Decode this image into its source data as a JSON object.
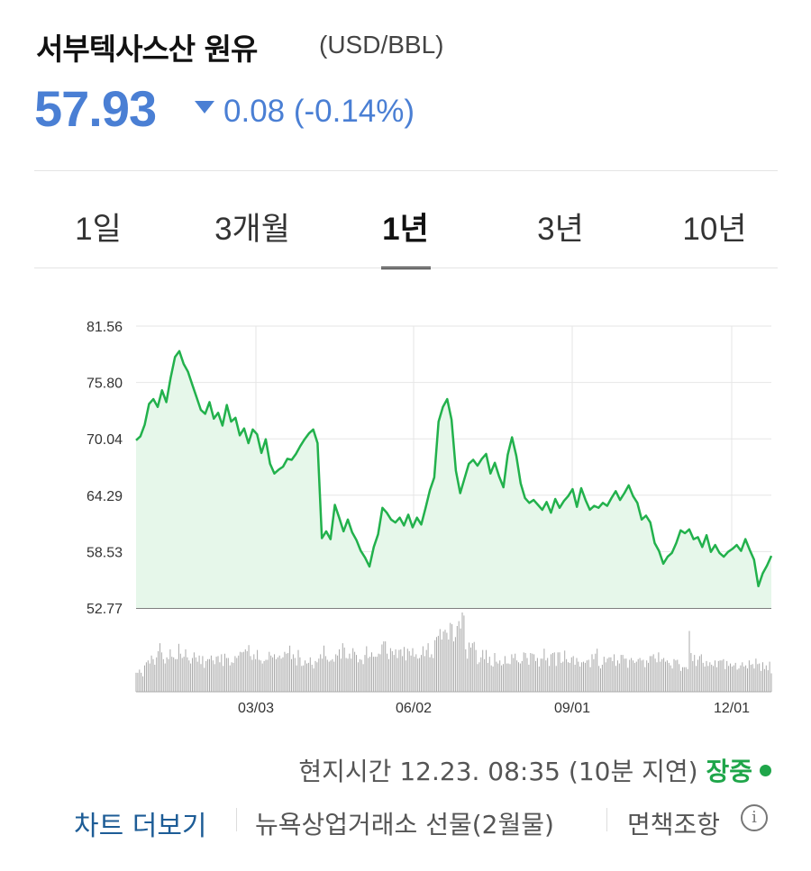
{
  "header": {
    "title": "서부텍사스산 원유",
    "unit": "(USD/BBL)",
    "price": "57.93",
    "change": "0.08 (-0.14%)",
    "change_direction": "down",
    "accent_color": "#4a7fd4"
  },
  "tabs": [
    {
      "label": "1일",
      "active": false
    },
    {
      "label": "3개월",
      "active": false
    },
    {
      "label": "1년",
      "active": true
    },
    {
      "label": "3년",
      "active": false
    },
    {
      "label": "10년",
      "active": false
    }
  ],
  "footer": {
    "time_text": "현지시간 12.23. 08:35 (10분 지연)",
    "status": "장중",
    "status_color": "#1fa64a",
    "more_chart": "차트 더보기",
    "exchange": "뉴욕상업거래소 선물(2월물)",
    "disclaimer": "면책조항",
    "info_icon": "info-icon"
  },
  "chart_data": {
    "type": "area",
    "y_ticks": [
      "81.56",
      "75.80",
      "70.04",
      "64.29",
      "58.53",
      "52.77"
    ],
    "ylim": [
      52.77,
      81.56
    ],
    "x_tick_labels": [
      "03/03",
      "06/02",
      "09/01",
      "12/01"
    ],
    "grid": true,
    "line_color": "#22b14c",
    "fill_color": "#e6f7ea",
    "series": [
      {
        "values": [
          69.9,
          70.3,
          71.5,
          73.6,
          74.1,
          73.3,
          75.0,
          73.8,
          76.3,
          78.4,
          79.0,
          77.7,
          76.9,
          75.6,
          74.3,
          73.0,
          72.6,
          73.8,
          72.1,
          72.7,
          71.4,
          73.5,
          71.8,
          72.2,
          70.4,
          71.1,
          69.6,
          71.0,
          70.5,
          68.6,
          70.0,
          67.5,
          66.5,
          66.9,
          67.2,
          68.0,
          67.9,
          68.5,
          69.3,
          70.0,
          70.6,
          71.0,
          69.6,
          59.9,
          60.6,
          59.8,
          63.3,
          62.0,
          60.6,
          61.8,
          60.5,
          59.7,
          58.6,
          57.9,
          57.0,
          59.0,
          60.3,
          63.0,
          62.5,
          61.8,
          61.5,
          62.0,
          61.2,
          62.3,
          61.0,
          62.0,
          61.3,
          63.0,
          64.8,
          66.1,
          71.8,
          73.3,
          74.1,
          72.0,
          66.8,
          64.5,
          66.0,
          67.5,
          67.9,
          67.3,
          68.0,
          68.5,
          66.5,
          67.6,
          66.2,
          65.1,
          68.4,
          70.2,
          68.3,
          65.5,
          64.0,
          63.5,
          63.8,
          63.3,
          62.8,
          63.6,
          62.5,
          63.9,
          63.0,
          63.7,
          64.2,
          64.9,
          63.1,
          65.0,
          63.8,
          62.8,
          63.2,
          63.0,
          63.5,
          63.2,
          64.0,
          64.7,
          63.8,
          64.5,
          65.3,
          64.2,
          63.5,
          61.8,
          62.2,
          61.5,
          59.4,
          58.6,
          57.3,
          58.0,
          58.4,
          59.4,
          60.7,
          60.4,
          60.8,
          59.8,
          60.0,
          59.0,
          60.2,
          58.5,
          59.2,
          58.4,
          58.0,
          58.5,
          58.8,
          59.2,
          58.6,
          59.8,
          58.7,
          57.7,
          55.0,
          56.3,
          57.1,
          58.1
        ]
      }
    ],
    "volume": [
      31,
      31,
      36,
      31,
      25,
      43,
      48,
      51,
      46,
      59,
      53,
      44,
      56,
      66,
      79,
      64,
      53,
      46,
      56,
      53,
      69,
      57,
      56,
      53,
      53,
      78,
      62,
      55,
      57,
      69,
      56,
      51,
      46,
      55,
      64,
      56,
      49,
      59,
      45,
      58,
      39,
      50,
      53,
      53,
      59,
      51,
      45,
      57,
      58,
      48,
      61,
      42,
      62,
      55,
      55,
      43,
      48,
      47,
      58,
      55,
      59,
      65,
      64,
      65,
      69,
      66,
      76,
      58,
      52,
      61,
      53,
      68,
      52,
      51,
      46,
      50,
      52,
      52,
      65,
      59,
      56,
      61,
      53,
      56,
      59,
      54,
      56,
      65,
      62,
      63,
      75,
      53,
      61,
      55,
      43,
      68,
      56,
      42,
      43,
      51,
      46,
      47,
      56,
      44,
      38,
      50,
      48,
      54,
      61,
      54,
      75,
      58,
      52,
      49,
      51,
      53,
      49,
      61,
      59,
      69,
      54,
      79,
      72,
      55,
      54,
      62,
      54,
      71,
      65,
      60,
      48,
      53,
      52,
      45,
      60,
      74,
      55,
      57,
      64,
      57,
      57,
      57,
      62,
      61,
      77,
      82,
      82,
      62,
      53,
      71,
      66,
      60,
      69,
      55,
      68,
      69,
      58,
      73,
      51,
      70,
      66,
      59,
      71,
      57,
      61,
      54,
      55,
      60,
      74,
      58,
      68,
      79,
      56,
      61,
      55,
      84,
      89,
      91,
      102,
      85,
      98,
      101,
      96,
      85,
      112,
      110,
      82,
      89,
      107,
      115,
      103,
      129,
      124,
      69,
      54,
      80,
      72,
      79,
      81,
      68,
      45,
      48,
      56,
      68,
      53,
      68,
      47,
      57,
      43,
      41,
      63,
      49,
      46,
      51,
      43,
      45,
      58,
      46,
      46,
      45,
      61,
      55,
      62,
      51,
      48,
      46,
      50,
      64,
      63,
      55,
      44,
      63,
      62,
      61,
      50,
      55,
      41,
      54,
      54,
      70,
      51,
      55,
      42,
      61,
      63,
      64,
      42,
      64,
      64,
      47,
      49,
      67,
      53,
      48,
      47,
      56,
      58,
      44,
      55,
      49,
      41,
      48,
      49,
      47,
      51,
      52,
      40,
      61,
      53,
      62,
      70,
      42,
      38,
      44,
      57,
      48,
      54,
      56,
      56,
      50,
      61,
      42,
      51,
      46,
      60,
      60,
      54,
      54,
      39,
      52,
      55,
      51,
      47,
      49,
      53,
      55,
      51,
      52,
      40,
      51,
      47,
      58,
      58,
      61,
      54,
      48,
      64,
      49,
      53,
      55,
      49,
      51,
      47,
      43,
      38,
      53,
      51,
      52,
      45,
      34,
      40,
      40,
      40,
      37,
      99,
      63,
      50,
      60,
      42,
      52,
      58,
      61,
      47,
      41,
      50,
      42,
      48,
      44,
      42,
      51,
      40,
      50,
      51,
      51,
      53,
      37,
      50,
      42,
      46,
      41,
      43,
      47,
      36,
      38,
      43,
      48,
      41,
      43,
      38,
      51,
      44,
      45,
      38,
      54,
      45,
      46,
      34,
      48,
      37,
      43,
      35,
      49,
      30
    ]
  }
}
